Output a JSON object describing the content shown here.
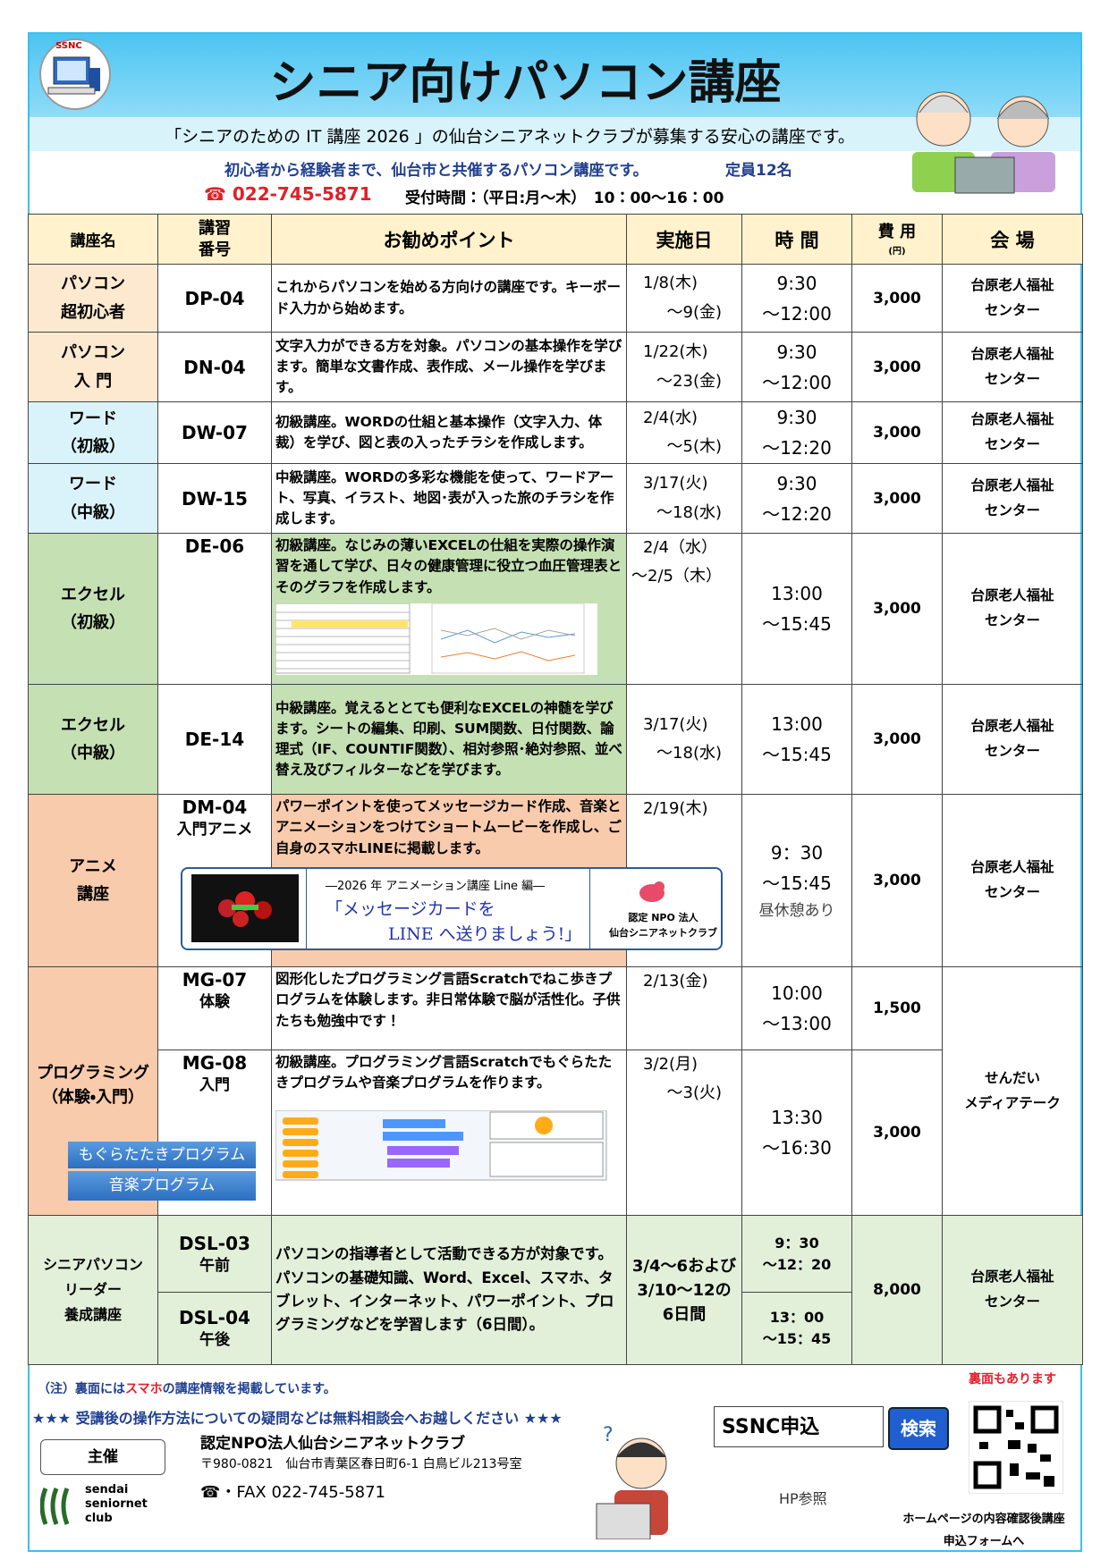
{
  "header": {
    "logo": "SSNC",
    "title": "シニア向けパソコン講座",
    "subtitle": "「シニアのための IT 講座 2026 」の仙台シニアネットクラブが募集する安心の講座です。",
    "intro": "初心者から経験者まで、仙台市と共催するパソコン講座です。",
    "capacity": "定員12名",
    "phone": "☎ 022-745-5871",
    "hours": "受付時間：（平日:月～木）　10：00～16：00"
  },
  "table": {
    "header": [
      [
        "講座名"
      ],
      [
        "講習",
        "番号"
      ],
      [
        "お勧めポイント"
      ],
      [
        "実施日"
      ],
      [
        "時 間"
      ],
      [
        "費 用",
        "(円)"
      ],
      [
        "会 場"
      ]
    ],
    "courses": [
      {
        "name": [
          "パソコン",
          "超初心者"
        ],
        "code": [
          "DP-04"
        ],
        "point": "これからパソコンを始める方向けの講座です。キーボード入力から始めます。",
        "date": [
          "1/8(木)",
          "～9(金)"
        ],
        "time": [
          "9:30",
          "～12:00"
        ],
        "fee": "3,000",
        "venue": [
          "台原老人福祉",
          "センター"
        ]
      },
      {
        "name": [
          "パソコン",
          "入 門"
        ],
        "code": [
          "DN-04"
        ],
        "point": "文字入力ができる方を対象。パソコンの基本操作を学びます。簡単な文書作成、表作成、メール操作を学びます。",
        "date": [
          "1/22(木)",
          "～23(金)"
        ],
        "time": [
          "9:30",
          "～12:00"
        ],
        "fee": "3,000",
        "venue": [
          "台原老人福祉",
          "センター"
        ]
      },
      {
        "name": [
          "ワード",
          "（初級）"
        ],
        "code": [
          "DW-07"
        ],
        "point": "初級講座。WORDの仕組と基本操作（文字入力、体裁）を学び、図と表の入ったチラシを作成します。",
        "date": [
          "2/4(水)",
          "～5(木)"
        ],
        "time": [
          "9:30",
          "～12:20"
        ],
        "fee": "3,000",
        "venue": [
          "台原老人福祉",
          "センター"
        ]
      },
      {
        "name": [
          "ワード",
          "（中級）"
        ],
        "code": [
          "DW-15"
        ],
        "point": "中級講座。WORDの多彩な機能を使って、ワードアート、写真、イラスト、地図･表が入った旅のチラシを作成します。",
        "date": [
          "3/17(火)",
          "～18(水)"
        ],
        "time": [
          "9:30",
          "～12:20"
        ],
        "fee": "3,000",
        "venue": [
          "台原老人福祉",
          "センター"
        ]
      },
      {
        "name": [
          "エクセル",
          "（初級）"
        ],
        "code": [
          "DE-06"
        ],
        "point": "初級講座。なじみの薄いEXCELの仕組を実際の操作演習を通して学び、日々の健康管理に役立つ血圧管理表とそのグラフを作成します。",
        "date": [
          "2/4（水）",
          "～2/5（木）"
        ],
        "time": [
          "13:00",
          "～15:45"
        ],
        "fee": "3,000",
        "venue": [
          "台原老人福祉",
          "センター"
        ]
      },
      {
        "name": [
          "エクセル",
          "（中級）"
        ],
        "code": [
          "DE-14"
        ],
        "point": "中級講座。覚えるととても便利なEXCELの神髄を学びます。シートの編集、印刷、SUM関数、日付関数、論理式（IF、COUNTIF関数）、相対参照･絶対参照、並べ替え及びフィルターなどを学びます。",
        "date": [
          "3/17(火)",
          "～18(水)"
        ],
        "time": [
          "13:00",
          "～15:45"
        ],
        "fee": "3,000",
        "venue": [
          "台原老人福祉",
          "センター"
        ]
      },
      {
        "name": [
          "アニメ",
          "講座"
        ],
        "code": [
          "DM-04",
          "入門アニメ"
        ],
        "point": "パワーポイントを使ってメッセージカード作成、音楽とアニメーションをつけてショートムービーを作成し、ご自身のスマホLINEに掲載します。",
        "date": [
          "2/19(木)"
        ],
        "time": [
          "9：30",
          "～15:45",
          "昼休憩あり"
        ],
        "fee": "3,000",
        "venue": [
          "台原老人福祉",
          "センター"
        ],
        "banner": {
          "heading": "―2026 年 アニメーション講座 Line 編―",
          "line1": "「メッセージカードを",
          "line2": "LINE へ送りましょう!」",
          "org1": "認定 NPO 法人",
          "org2": "仙台シニアネットクラブ"
        }
      },
      {
        "name": [
          "プログラミング",
          "（体験・入門）"
        ],
        "labels": [
          "もぐらたたきプログラム",
          "音楽プログラム"
        ],
        "venue": [
          "せんだい",
          "メディアテーク"
        ],
        "sessions": [
          {
            "code": [
              "MG-07",
              "体験"
            ],
            "point": "図形化したプログラミング言語Scratchでねこ歩きプログラムを体験します。非日常体験で脳が活性化。子供たちも勉強中です！",
            "date": [
              "2/13(金)"
            ],
            "time": [
              "10:00",
              "～13:00"
            ],
            "fee": "1,500"
          },
          {
            "code": [
              "MG-08",
              "入門"
            ],
            "point": "初級講座。プログラミング言語Scratchでもぐらたたきプログラムや音楽プログラムを作ります。",
            "date": [
              "3/2(月)",
              "～3(火)"
            ],
            "time": [
              "13:30",
              "～16:30"
            ],
            "fee": "3,000"
          }
        ]
      },
      {
        "name": [
          "シニアパソコン",
          "リーダー",
          "養成講座"
        ],
        "point": "パソコンの指導者として活動できる方が対象です。パソコンの基礎知識、Word、Excel、スマホ、タブレット、インターネット、パワーポイント、プログラミングなどを学習します（6日間）。",
        "date": [
          "3/4～6および",
          "3/10～12の",
          "6日間"
        ],
        "fee": "8,000",
        "venue": [
          "台原老人福祉",
          "センター"
        ],
        "sessions": [
          {
            "code": [
              "DSL-03",
              "午前"
            ],
            "time": [
              "9：30",
              "～12：20"
            ]
          },
          {
            "code": [
              "DSL-04",
              "午後"
            ],
            "time": [
              "13：00",
              "～15：45"
            ]
          }
        ]
      }
    ]
  },
  "footer": {
    "note_a": "（注）裏面には",
    "note_b": "スマホ",
    "note_c": "の講座情報を掲載しています。",
    "back": "裏面もあります",
    "consult": "★★★ 受講後の操作方法についての疑問などは無料相談会へお越しください ★★★",
    "host": "主催",
    "org": "認定NPO法人仙台シニアネットクラブ",
    "address": "〒980-0821　仙台市青葉区春日町6-1 白鳥ビル213号室",
    "tel": "☎・FAX  022-745-5871",
    "logo": [
      "sendai",
      "seniornet",
      "club"
    ],
    "search": "SSNC申込",
    "search_button": "検索",
    "hp": "HP参照",
    "form1": "ホームページの内容確認後講座",
    "form2": "申込フォームへ"
  }
}
